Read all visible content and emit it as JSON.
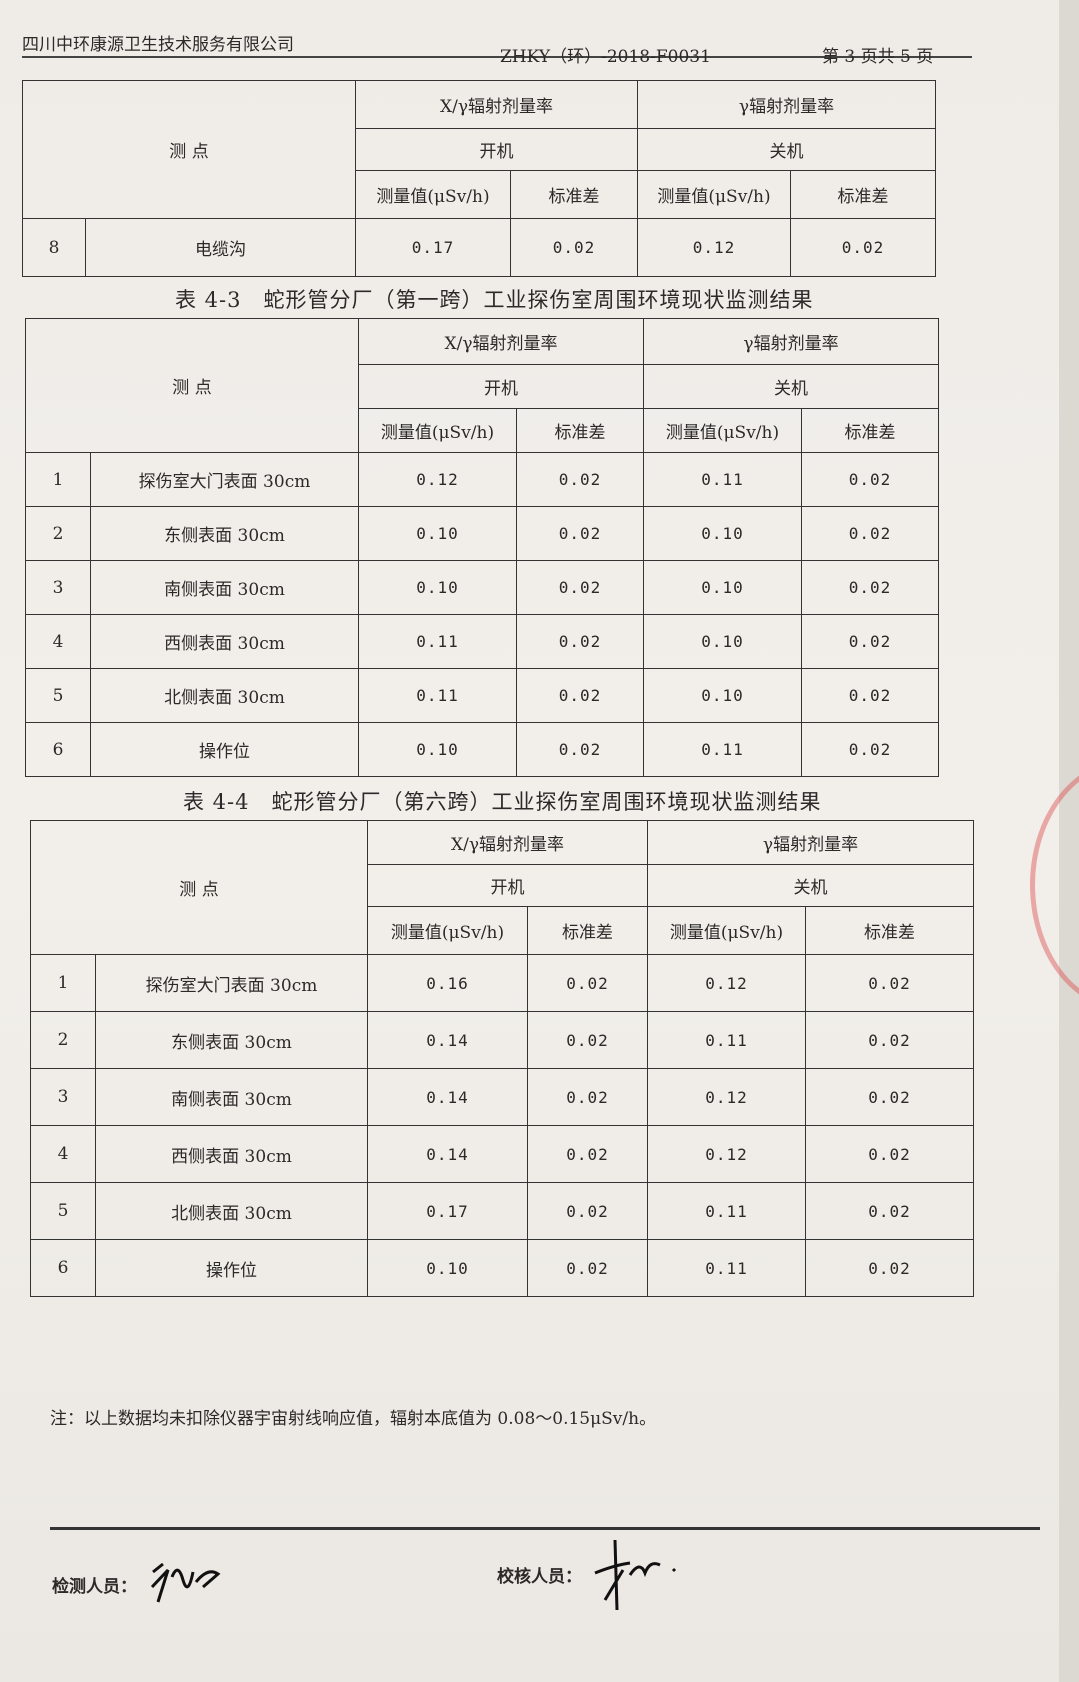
{
  "header": {
    "company": "四川中环康源卫生技术服务有限公司",
    "doc_code": "ZHKY（环）-2018-F0031",
    "page_info": "第 3 页共 5 页"
  },
  "columns": {
    "point": "测 点",
    "xgamma": "X/γ辐射剂量率",
    "gamma": "γ辐射剂量率",
    "on": "开机",
    "off": "关机",
    "measured": "测量值(μSv/h)",
    "std": "标准差"
  },
  "tables": [
    {
      "caption": "",
      "rows": [
        {
          "no": "8",
          "point": "电缆沟",
          "on_val": "0.17",
          "on_std": "0.02",
          "off_val": "0.12",
          "off_std": "0.02"
        }
      ]
    },
    {
      "caption": "表 4-3　蛇形管分厂（第一跨）工业探伤室周围环境现状监测结果",
      "rows": [
        {
          "no": "1",
          "point": "探伤室大门表面 30cm",
          "on_val": "0.12",
          "on_std": "0.02",
          "off_val": "0.11",
          "off_std": "0.02"
        },
        {
          "no": "2",
          "point": "东侧表面 30cm",
          "on_val": "0.10",
          "on_std": "0.02",
          "off_val": "0.10",
          "off_std": "0.02"
        },
        {
          "no": "3",
          "point": "南侧表面 30cm",
          "on_val": "0.10",
          "on_std": "0.02",
          "off_val": "0.10",
          "off_std": "0.02"
        },
        {
          "no": "4",
          "point": "西侧表面 30cm",
          "on_val": "0.11",
          "on_std": "0.02",
          "off_val": "0.10",
          "off_std": "0.02"
        },
        {
          "no": "5",
          "point": "北侧表面 30cm",
          "on_val": "0.11",
          "on_std": "0.02",
          "off_val": "0.10",
          "off_std": "0.02"
        },
        {
          "no": "6",
          "point": "操作位",
          "on_val": "0.10",
          "on_std": "0.02",
          "off_val": "0.11",
          "off_std": "0.02"
        }
      ]
    },
    {
      "caption": "表 4-4　蛇形管分厂（第六跨）工业探伤室周围环境现状监测结果",
      "rows": [
        {
          "no": "1",
          "point": "探伤室大门表面 30cm",
          "on_val": "0.16",
          "on_std": "0.02",
          "off_val": "0.12",
          "off_std": "0.02"
        },
        {
          "no": "2",
          "point": "东侧表面 30cm",
          "on_val": "0.14",
          "on_std": "0.02",
          "off_val": "0.11",
          "off_std": "0.02"
        },
        {
          "no": "3",
          "point": "南侧表面 30cm",
          "on_val": "0.14",
          "on_std": "0.02",
          "off_val": "0.12",
          "off_std": "0.02"
        },
        {
          "no": "4",
          "point": "西侧表面 30cm",
          "on_val": "0.14",
          "on_std": "0.02",
          "off_val": "0.12",
          "off_std": "0.02"
        },
        {
          "no": "5",
          "point": "北侧表面 30cm",
          "on_val": "0.17",
          "on_std": "0.02",
          "off_val": "0.11",
          "off_std": "0.02"
        },
        {
          "no": "6",
          "point": "操作位",
          "on_val": "0.10",
          "on_std": "0.02",
          "off_val": "0.11",
          "off_std": "0.02"
        }
      ]
    }
  ],
  "note": "注：以上数据均未扣除仪器宇宙射线响应值，辐射本底值为 0.08～0.15μSv/h。",
  "footer": {
    "tester_label": "检测人员：",
    "reviewer_label": "校核人员："
  }
}
